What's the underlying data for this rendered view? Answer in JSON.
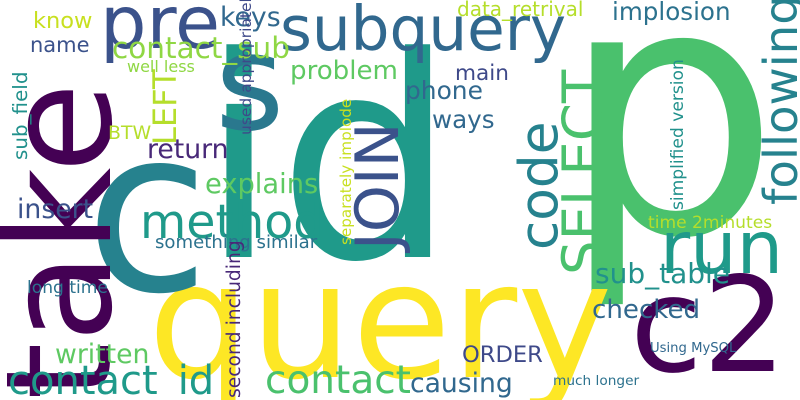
{
  "words": [
    {
      "text": "p",
      "color": "#4ac16d"
    },
    {
      "text": "id",
      "color": "#1f9a8a"
    },
    {
      "text": "query",
      "color": "#fde725"
    },
    {
      "text": "c",
      "color": "#26828e"
    },
    {
      "text": "take",
      "color": "#440154"
    },
    {
      "text": "c2",
      "color": "#440154"
    },
    {
      "text": "s",
      "color": "#2a788e"
    },
    {
      "text": "subquery",
      "color": "#31688e"
    },
    {
      "text": "pre",
      "color": "#3b528b"
    },
    {
      "text": "run",
      "color": "#1f9a8a"
    },
    {
      "text": "method",
      "color": "#1f9a8a"
    },
    {
      "text": "code",
      "color": "#26828e"
    },
    {
      "text": "SELECT",
      "color": "#4ac16d"
    },
    {
      "text": "JOIN",
      "color": "#3b528b"
    },
    {
      "text": "following",
      "color": "#26828e"
    },
    {
      "text": "contact",
      "color": "#4ac16d"
    },
    {
      "text": "contact_id",
      "color": "#1f9a8a"
    },
    {
      "text": "sub_table",
      "color": "#21918c"
    },
    {
      "text": "contact_sub",
      "color": "#8fd744"
    },
    {
      "text": "problem",
      "color": "#5ec962"
    },
    {
      "text": "explains",
      "color": "#5ec962"
    },
    {
      "text": "implosion",
      "color": "#2c728e"
    },
    {
      "text": "ways",
      "color": "#31688e"
    },
    {
      "text": "phone",
      "color": "#31688e"
    },
    {
      "text": "main",
      "color": "#3e4989"
    },
    {
      "text": "keys",
      "color": "#31688e"
    },
    {
      "text": "know",
      "color": "#c8e020"
    },
    {
      "text": "name",
      "color": "#3b528b"
    },
    {
      "text": "LEFT",
      "color": "#b5de2b"
    },
    {
      "text": "BTW",
      "color": "#b5de2b"
    },
    {
      "text": "sub_field",
      "color": "#21918c"
    },
    {
      "text": "return",
      "color": "#482878"
    },
    {
      "text": "insert",
      "color": "#3b528b"
    },
    {
      "text": "checked",
      "color": "#31688e"
    },
    {
      "text": "written",
      "color": "#5ec962"
    },
    {
      "text": "ORDER",
      "color": "#3e4989"
    },
    {
      "text": "causing",
      "color": "#31688e"
    },
    {
      "text": "something similar",
      "color": "#2c728e"
    },
    {
      "text": "data_retrival",
      "color": "#b5de2b"
    },
    {
      "text": "used appropriately",
      "color": "#3e4989"
    },
    {
      "text": "well less",
      "color": "#8fd744"
    },
    {
      "text": "separately implode",
      "color": "#c8e020"
    },
    {
      "text": "time 2minutes",
      "color": "#b5de2b"
    },
    {
      "text": "simplified version",
      "color": "#21918c"
    },
    {
      "text": "long time",
      "color": "#2c728e"
    },
    {
      "text": "second including",
      "color": "#482878"
    },
    {
      "text": "Using MySQL",
      "color": "#31688e"
    },
    {
      "text": "much longer",
      "color": "#2c728e"
    }
  ]
}
